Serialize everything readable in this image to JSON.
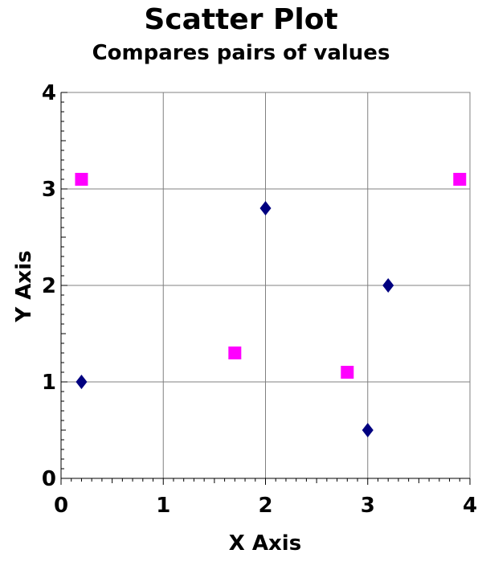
{
  "chart_data": {
    "type": "scatter",
    "title": "Scatter Plot",
    "subtitle": "Compares pairs of values",
    "xlabel": "X Axis",
    "ylabel": "Y Axis",
    "xlim": [
      0,
      4
    ],
    "ylim": [
      0,
      4
    ],
    "xticks": [
      "0",
      "1",
      "2",
      "3",
      "4"
    ],
    "yticks": [
      "0",
      "1",
      "2",
      "3",
      "4"
    ],
    "grid": true,
    "series": [
      {
        "marker": "diamond",
        "color": "#000080",
        "points": [
          {
            "x": 0.2,
            "y": 1.0
          },
          {
            "x": 2.0,
            "y": 2.8
          },
          {
            "x": 3.2,
            "y": 2.0
          },
          {
            "x": 3.0,
            "y": 0.5
          }
        ]
      },
      {
        "marker": "square",
        "color": "#ff00ff",
        "points": [
          {
            "x": 0.2,
            "y": 3.1
          },
          {
            "x": 1.7,
            "y": 1.3
          },
          {
            "x": 2.8,
            "y": 1.1
          },
          {
            "x": 3.9,
            "y": 3.1
          }
        ]
      }
    ]
  }
}
